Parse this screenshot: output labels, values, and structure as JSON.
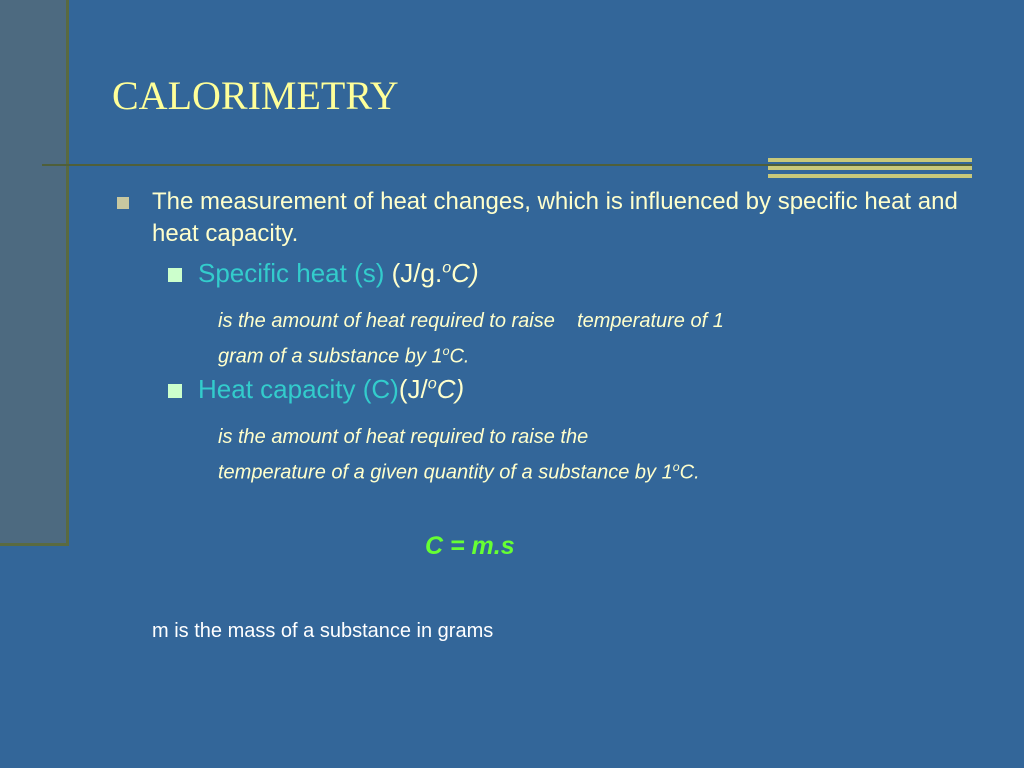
{
  "title": "CALORIMETRY",
  "bullet": {
    "text": "The measurement of heat changes, which is influenced by specific heat and heat capacity.",
    "items": [
      {
        "term": "Specific heat (s)",
        "unit": " (J/g.",
        "unit_sup": "o",
        "unit_end": "C)",
        "desc_lines": [
          "is the amount of heat required to raise    temperature of 1",
          "gram of a substance by 1"
        ],
        "desc_sup": "o",
        "desc_end": "C."
      },
      {
        "term": "Heat capacity (C)",
        "unit": "(J/",
        "unit_sup": "o",
        "unit_end": "C)",
        "desc_lines": [
          "is the amount of heat required to raise the",
          "temperature of a given quantity of a substance by 1"
        ],
        "desc_sup": "o",
        "desc_end": "C."
      }
    ]
  },
  "formula": "C = m.s",
  "note": "m is the mass of a substance in grams"
}
